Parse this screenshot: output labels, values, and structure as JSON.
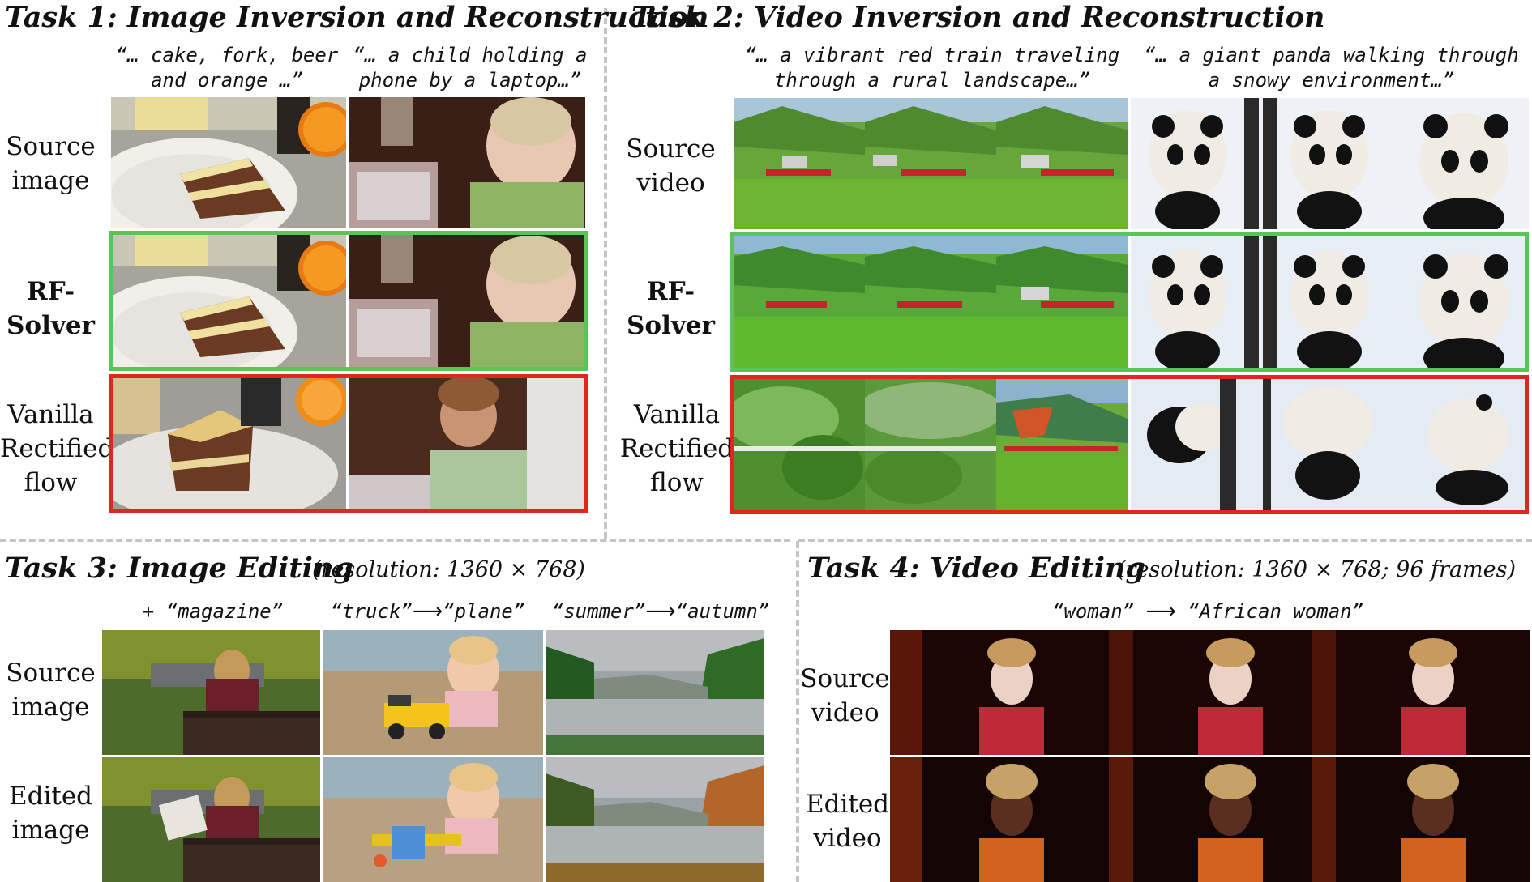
{
  "task1": {
    "title": "Task 1: Image Inversion and Reconstruction",
    "prompt1_line1": "“… cake, fork, beer",
    "prompt1_line2": "and orange …”",
    "prompt2_line1": "“… a child holding a",
    "prompt2_line2": "phone by a laptop…”",
    "row_source_1": "Source",
    "row_source_2": "image",
    "row_rf_1": "RF-",
    "row_rf_2": "Solver",
    "row_vanilla_1": "Vanilla",
    "row_vanilla_2": "Rectified",
    "row_vanilla_3": "flow"
  },
  "task2": {
    "title": "Task 2: Video Inversion and Reconstruction",
    "prompt1_line1": "“… a vibrant red train traveling",
    "prompt1_line2": "through a rural landscape…”",
    "prompt2_line1": "“… a giant panda walking through",
    "prompt2_line2": "a snowy environment…”",
    "row_source_1": "Source",
    "row_source_2": "video",
    "row_rf_1": "RF-",
    "row_rf_2": "Solver",
    "row_vanilla_1": "Vanilla",
    "row_vanilla_2": "Rectified",
    "row_vanilla_3": "flow"
  },
  "task3": {
    "title": "Task 3: Image Editing",
    "resolution": "(resolution: 1360 × 768)",
    "edit1": "+ “magazine”",
    "edit2_from": "“truck”",
    "edit2_to": "“plane”",
    "edit3_from": "“summer”",
    "edit3_to": "“autumn”",
    "row_source_1": "Source",
    "row_source_2": "image",
    "row_edited_1": "Edited",
    "row_edited_2": "image"
  },
  "task4": {
    "title": "Task 4: Video Editing",
    "resolution": "(resolution: 1360 × 768; 96 frames)",
    "edit_from": "“woman”",
    "edit_to": "“African woman”",
    "row_source_1": "Source",
    "row_source_2": "video",
    "row_edited_1": "Edited",
    "row_edited_2": "video"
  },
  "colors": {
    "rf_solver_frame": "#5ac35a",
    "vanilla_frame": "#e3241f",
    "divider": "#c4c4c4"
  }
}
